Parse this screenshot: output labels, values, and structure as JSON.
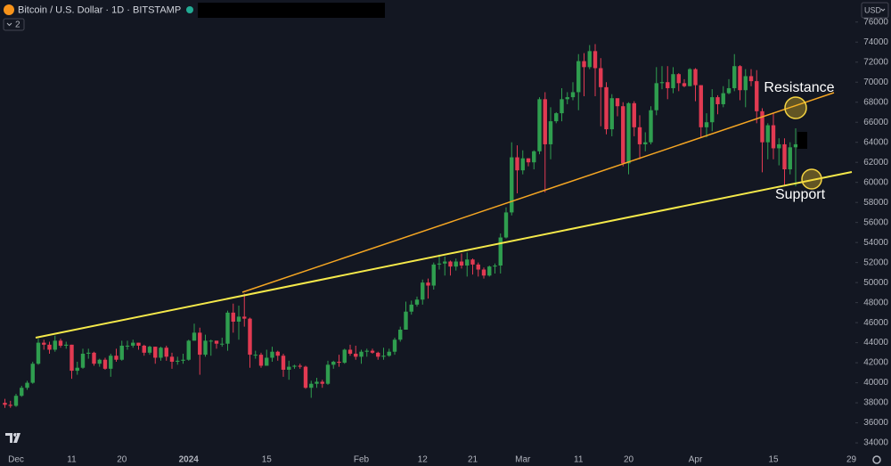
{
  "chart_data": {
    "type": "candlestick",
    "title": "Bitcoin / U.S. Dollar · 1D · BITSTAMP",
    "currency": "USD",
    "indicator_count": "2",
    "annotations": [
      "Resistance",
      "Support"
    ],
    "up_color": "#2f9e4f",
    "down_color": "#e23a52",
    "categories": [
      null,
      null,
      "Dec",
      null,
      null,
      null,
      null,
      null,
      null,
      null,
      null,
      null,
      "11",
      null,
      null,
      null,
      null,
      null,
      null,
      null,
      null,
      "20",
      null,
      null,
      null,
      null,
      null,
      null,
      null,
      null,
      null,
      null,
      null,
      "2024",
      null,
      null,
      null,
      null,
      null,
      null,
      null,
      null,
      null,
      null,
      null,
      null,
      null,
      "15",
      null,
      null,
      null,
      null,
      null,
      null,
      null,
      null,
      null,
      null,
      null,
      null,
      null,
      null,
      null,
      null,
      "Feb",
      null,
      null,
      null,
      null,
      null,
      null,
      null,
      null,
      null,
      null,
      "12",
      null,
      null,
      null,
      null,
      null,
      null,
      null,
      null,
      "21",
      null,
      null,
      null,
      null,
      null,
      null,
      null,
      null,
      "Mar",
      null,
      null,
      null,
      null,
      null,
      null,
      null,
      null,
      null,
      "11",
      null,
      null,
      null,
      null,
      null,
      null,
      null,
      null,
      "20",
      null,
      null,
      null,
      null,
      null,
      null,
      null,
      null,
      null,
      null,
      null,
      "Apr",
      null,
      null,
      null,
      null,
      null,
      null,
      null,
      null,
      null,
      null,
      null,
      null,
      null,
      "15",
      null,
      null,
      null,
      null,
      null,
      null,
      null,
      null,
      null,
      null,
      null,
      null,
      null,
      "29"
    ],
    "open": [
      38000,
      37800,
      37700,
      38700,
      39500,
      40000,
      41900,
      44000,
      43800,
      43300,
      44200,
      43700,
      43800,
      41200,
      41500,
      42900,
      43000,
      41900,
      42300,
      41400,
      42700,
      42300,
      43700,
      43700,
      44000,
      43700,
      43000,
      43600,
      42500,
      43500,
      42600,
      42100,
      42200,
      42300,
      44200,
      45000,
      42800,
      44200,
      44200,
      43900,
      43900,
      47000,
      46100,
      46600,
      46400,
      42800,
      42800,
      41700,
      42500,
      43100,
      42700,
      41300,
      41600,
      41700,
      41600,
      39500,
      39900,
      40100,
      39900,
      41800,
      42100,
      42000,
      43300,
      42900,
      42600,
      43100,
      43200,
      43000,
      42600,
      42700,
      43100,
      44300,
      45300,
      47100,
      47800,
      48300,
      50000,
      49700,
      51800,
      51900,
      52100,
      51600,
      52100,
      51700,
      52300,
      51800,
      51300,
      50700,
      51600,
      51700,
      54500,
      57000,
      62500,
      61200,
      62400,
      62000,
      63100,
      68300,
      63800,
      66100,
      66900,
      68300,
      68500,
      69000,
      72100,
      71500,
      73100,
      71400,
      69500,
      65300,
      68400,
      67600,
      61900,
      67900,
      65500,
      63800,
      64000,
      67200,
      69900,
      70000,
      69400,
      70800,
      69900,
      69600,
      71300,
      69700,
      65500,
      66000,
      68500,
      67800,
      68900,
      69400,
      71600,
      69200,
      70600,
      70100,
      67100,
      64000,
      65700,
      63400,
      63800,
      61300,
      63500,
      null,
      null,
      null,
      null,
      null,
      null,
      null,
      null,
      null,
      null
    ],
    "high": [
      38400,
      38200,
      38900,
      39700,
      40200,
      42100,
      44400,
      44300,
      44100,
      44700,
      44400,
      44100,
      43800,
      42100,
      43400,
      43400,
      43100,
      42400,
      42500,
      42900,
      43400,
      44200,
      44200,
      44300,
      44000,
      43800,
      43700,
      43600,
      43600,
      43700,
      43000,
      42600,
      42900,
      44300,
      45900,
      45500,
      44800,
      44300,
      44200,
      44500,
      47200,
      47900,
      47700,
      48900,
      46500,
      43200,
      43000,
      43300,
      43600,
      43200,
      42900,
      42200,
      41800,
      41900,
      41700,
      40200,
      40500,
      40300,
      42200,
      42200,
      42800,
      43400,
      43800,
      43700,
      43300,
      43400,
      43400,
      43100,
      43500,
      43400,
      44500,
      45600,
      48100,
      48200,
      48600,
      50300,
      50400,
      52000,
      52800,
      52600,
      52200,
      52400,
      52900,
      53000,
      52400,
      52000,
      51500,
      51700,
      51900,
      54900,
      57500,
      64000,
      63700,
      63200,
      62400,
      63200,
      68500,
      69000,
      67500,
      67000,
      69400,
      69000,
      70000,
      72800,
      72900,
      73700,
      73800,
      72400,
      70000,
      68800,
      68100,
      68000,
      68000,
      68100,
      66700,
      65000,
      67600,
      71500,
      71600,
      71600,
      71500,
      70900,
      70300,
      71400,
      71400,
      69700,
      66900,
      69300,
      68700,
      69600,
      70300,
      72800,
      71700,
      71300,
      71300,
      71200,
      67400,
      65900,
      66900,
      64400,
      64400,
      64000,
      65400,
      null,
      null,
      null,
      null,
      null,
      null,
      null,
      null,
      null,
      null
    ],
    "low": [
      37500,
      37500,
      37600,
      38600,
      39300,
      39900,
      41800,
      43300,
      42900,
      43100,
      43500,
      43400,
      40400,
      40800,
      41400,
      42400,
      41700,
      41600,
      41300,
      40600,
      42100,
      42200,
      43300,
      43500,
      43300,
      42700,
      42800,
      41900,
      42200,
      42200,
      41400,
      41800,
      41900,
      42200,
      44200,
      40800,
      42600,
      42700,
      43400,
      43600,
      43200,
      45000,
      44300,
      45600,
      41500,
      42400,
      41500,
      41700,
      42100,
      42200,
      40600,
      40300,
      41400,
      41400,
      39400,
      38500,
      39500,
      39500,
      39800,
      41400,
      41600,
      41900,
      42700,
      42300,
      41900,
      42600,
      42900,
      42300,
      42300,
      42600,
      42800,
      44100,
      45300,
      46800,
      47600,
      47800,
      48400,
      49300,
      51300,
      50700,
      50700,
      51200,
      51400,
      50600,
      50800,
      50600,
      50400,
      50600,
      50900,
      50900,
      54400,
      56700,
      58900,
      60800,
      61600,
      61300,
      62800,
      59000,
      62300,
      65900,
      66100,
      67800,
      68200,
      67200,
      68600,
      71300,
      68600,
      65600,
      64800,
      64600,
      66600,
      61600,
      60800,
      64600,
      62300,
      63100,
      63800,
      66700,
      69300,
      68300,
      68900,
      69100,
      69500,
      69600,
      68100,
      64500,
      64500,
      65100,
      66800,
      67500,
      68800,
      69100,
      68200,
      67500,
      69600,
      65900,
      61000,
      62300,
      62300,
      61700,
      59700,
      60800,
      59600,
      null,
      null,
      null,
      null,
      null,
      null,
      null,
      null,
      null,
      null
    ],
    "close": [
      37800,
      37700,
      38700,
      39500,
      40000,
      41900,
      44000,
      43800,
      43300,
      44200,
      43700,
      43800,
      41200,
      41500,
      42900,
      43000,
      41900,
      42300,
      41400,
      42700,
      42300,
      43700,
      43700,
      44000,
      43700,
      43000,
      43600,
      42500,
      43500,
      42600,
      42100,
      42200,
      42300,
      44200,
      45000,
      42800,
      44200,
      44200,
      43900,
      43900,
      47000,
      46100,
      46600,
      46400,
      42800,
      42800,
      41700,
      42500,
      43100,
      42700,
      41300,
      41600,
      41700,
      41600,
      39500,
      39900,
      40100,
      39900,
      41800,
      42100,
      42000,
      43300,
      42900,
      42600,
      43100,
      43200,
      43000,
      42600,
      42700,
      43100,
      44300,
      45300,
      47100,
      47800,
      48300,
      50000,
      49700,
      51800,
      51900,
      52100,
      51600,
      52100,
      51700,
      52300,
      51800,
      51300,
      50700,
      51600,
      51700,
      54500,
      57000,
      62500,
      61200,
      62400,
      62000,
      63100,
      68300,
      63800,
      66100,
      66900,
      68300,
      68500,
      69000,
      72100,
      71500,
      73100,
      71400,
      69500,
      65300,
      68400,
      67600,
      61900,
      67900,
      65500,
      63800,
      64000,
      67200,
      69900,
      70000,
      69400,
      70800,
      69900,
      69600,
      71300,
      69700,
      65500,
      66000,
      68500,
      67800,
      68900,
      69400,
      71600,
      69200,
      70600,
      70100,
      67100,
      64000,
      65700,
      63400,
      63800,
      61300,
      63500,
      63800,
      null,
      null,
      null,
      null,
      null,
      null,
      null,
      null,
      null,
      null
    ],
    "ylim": [
      32850,
      78200
    ],
    "yticks": [
      34000,
      36000,
      38000,
      40000,
      42000,
      44000,
      46000,
      48000,
      50000,
      52000,
      54000,
      56000,
      58000,
      60000,
      62000,
      64000,
      66000,
      68000,
      70000,
      72000,
      74000,
      76000
    ],
    "grid": false
  }
}
